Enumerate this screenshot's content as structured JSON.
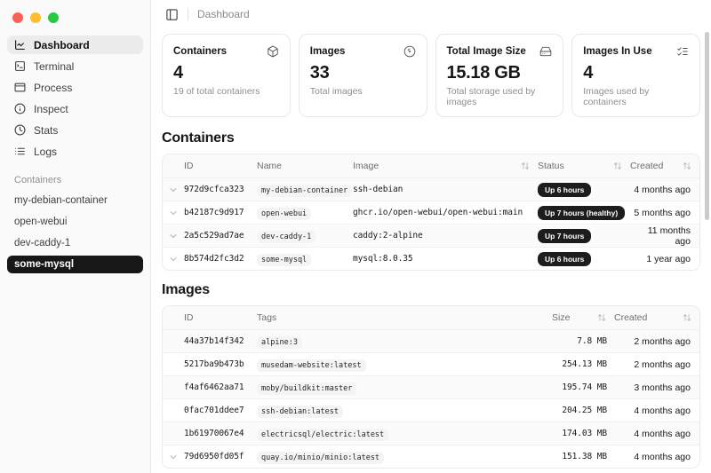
{
  "topbar": {
    "breadcrumb": "Dashboard",
    "toggle_icon": "panel-left-icon"
  },
  "sidebar": {
    "window_controls": [
      "close",
      "minimize",
      "zoom"
    ],
    "nav": [
      {
        "label": "Dashboard",
        "icon": "chart-line-icon",
        "active": true
      },
      {
        "label": "Terminal",
        "icon": "terminal-icon",
        "active": false
      },
      {
        "label": "Process",
        "icon": "window-icon",
        "active": false
      },
      {
        "label": "Inspect",
        "icon": "info-icon",
        "active": false
      },
      {
        "label": "Stats",
        "icon": "clock-icon",
        "active": false
      },
      {
        "label": "Logs",
        "icon": "list-icon",
        "active": false
      }
    ],
    "section_label": "Containers",
    "containers": [
      {
        "name": "my-debian-container",
        "active": false
      },
      {
        "name": "open-webui",
        "active": false
      },
      {
        "name": "dev-caddy-1",
        "active": false
      },
      {
        "name": "some-mysql",
        "active": true
      }
    ]
  },
  "cards": [
    {
      "title": "Containers",
      "icon": "box-icon",
      "value": "4",
      "subtitle": "19 of total containers"
    },
    {
      "title": "Images",
      "icon": "disc-icon",
      "value": "33",
      "subtitle": "Total images"
    },
    {
      "title": "Total Image Size",
      "icon": "hard-drive-icon",
      "value": "15.18 GB",
      "subtitle": "Total storage used by images"
    },
    {
      "title": "Images In Use",
      "icon": "list-checks-icon",
      "value": "4",
      "subtitle": "Images used by containers"
    }
  ],
  "containers_table": {
    "heading": "Containers",
    "columns": [
      {
        "label": "ID",
        "sortable": false
      },
      {
        "label": "Name",
        "sortable": false
      },
      {
        "label": "Image",
        "sortable": true
      },
      {
        "label": "Status",
        "sortable": true
      },
      {
        "label": "Created",
        "sortable": true
      }
    ],
    "rows": [
      {
        "id": "972d9cfca323",
        "name": "my-debian-container",
        "image": "ssh-debian",
        "status": "Up 6 hours",
        "created": "4 months ago"
      },
      {
        "id": "b42187c9d917",
        "name": "open-webui",
        "image": "ghcr.io/open-webui/open-webui:main",
        "status": "Up 7 hours (healthy)",
        "created": "5 months ago"
      },
      {
        "id": "2a5c529ad7ae",
        "name": "dev-caddy-1",
        "image": "caddy:2-alpine",
        "status": "Up 7 hours",
        "created": "11 months ago"
      },
      {
        "id": "8b574d2fc3d2",
        "name": "some-mysql",
        "image": "mysql:8.0.35",
        "status": "Up 6 hours",
        "created": "1 year ago"
      }
    ]
  },
  "images_table": {
    "heading": "Images",
    "columns": [
      {
        "label": "ID",
        "sortable": false
      },
      {
        "label": "Tags",
        "sortable": false
      },
      {
        "label": "Size",
        "sortable": true
      },
      {
        "label": "Created",
        "sortable": true
      }
    ],
    "rows": [
      {
        "id": "44a37b14f342",
        "tag": "alpine:3",
        "size": "7.8 MB",
        "created": "2 months ago",
        "expandable": false
      },
      {
        "id": "5217ba9b473b",
        "tag": "musedam-website:latest",
        "size": "254.13 MB",
        "created": "2 months ago",
        "expandable": false
      },
      {
        "id": "f4af6462aa71",
        "tag": "moby/buildkit:master",
        "size": "195.74 MB",
        "created": "3 months ago",
        "expandable": false
      },
      {
        "id": "0fac701ddee7",
        "tag": "ssh-debian:latest",
        "size": "204.25 MB",
        "created": "4 months ago",
        "expandable": false
      },
      {
        "id": "1b61970067e4",
        "tag": "electricsql/electric:latest",
        "size": "174.03 MB",
        "created": "4 months ago",
        "expandable": false
      },
      {
        "id": "79d6950fd05f",
        "tag": "quay.io/minio/minio:latest",
        "size": "151.38 MB",
        "created": "4 months ago",
        "expandable": true
      }
    ]
  },
  "colors": {
    "sidebar_bg": "#fafafa",
    "active_nav_bg": "#ececec",
    "selected_container_bg": "#171717",
    "status_badge_bg": "#1d1d1d",
    "traffic_red": "#ff5f57",
    "traffic_yellow": "#febc2e",
    "traffic_green": "#28c840"
  }
}
